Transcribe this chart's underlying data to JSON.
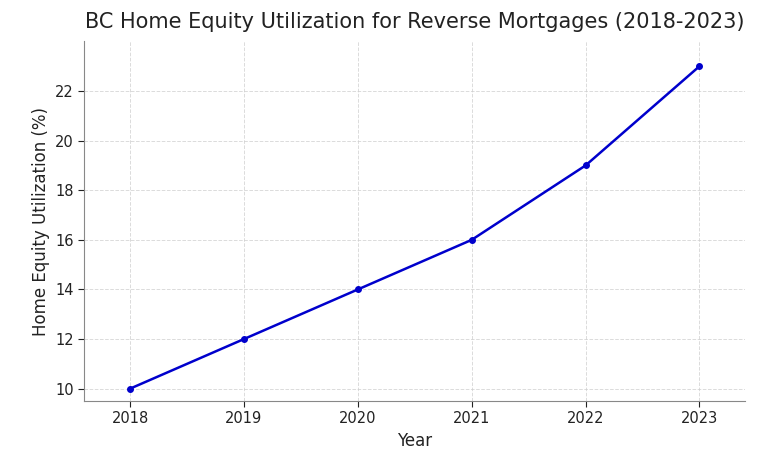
{
  "title": "BC Home Equity Utilization for Reverse Mortgages (2018-2023)",
  "xlabel": "Year",
  "ylabel": "Home Equity Utilization (%)",
  "years": [
    2018,
    2019,
    2020,
    2021,
    2022,
    2023
  ],
  "values": [
    10,
    12,
    14,
    16,
    19,
    23
  ],
  "line_color": "#0000CC",
  "marker": "o",
  "marker_size": 4,
  "linewidth": 1.8,
  "ylim": [
    9.5,
    24
  ],
  "xlim": [
    2017.6,
    2023.4
  ],
  "yticks": [
    10,
    12,
    14,
    16,
    18,
    20,
    22
  ],
  "grid_color": "#cccccc",
  "grid_linestyle": "--",
  "grid_alpha": 0.7,
  "background_color": "#ffffff",
  "title_fontsize": 15,
  "label_fontsize": 12,
  "tick_fontsize": 10.5
}
